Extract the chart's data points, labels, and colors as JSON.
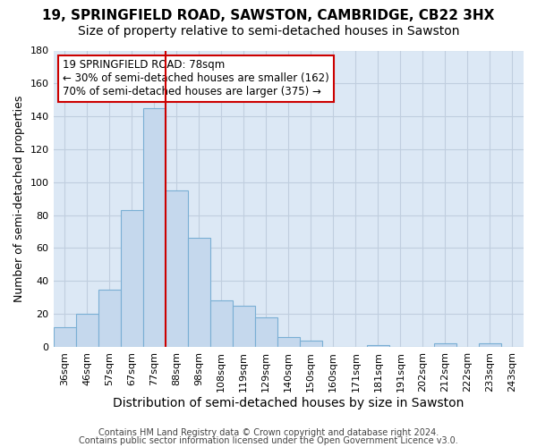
{
  "title": "19, SPRINGFIELD ROAD, SAWSTON, CAMBRIDGE, CB22 3HX",
  "subtitle": "Size of property relative to semi-detached houses in Sawston",
  "xlabel": "Distribution of semi-detached houses by size in Sawston",
  "ylabel": "Number of semi-detached properties",
  "bin_labels": [
    "36sqm",
    "46sqm",
    "57sqm",
    "67sqm",
    "77sqm",
    "88sqm",
    "98sqm",
    "108sqm",
    "119sqm",
    "129sqm",
    "140sqm",
    "150sqm",
    "160sqm",
    "171sqm",
    "181sqm",
    "191sqm",
    "202sqm",
    "212sqm",
    "222sqm",
    "233sqm",
    "243sqm"
  ],
  "bar_values": [
    12,
    20,
    35,
    83,
    145,
    95,
    66,
    28,
    25,
    18,
    6,
    4,
    0,
    0,
    1,
    0,
    0,
    2,
    0,
    2,
    0
  ],
  "bar_color": "#c5d8ed",
  "bar_edge_color": "#7aafd4",
  "vline_label_index": 4,
  "vline_color": "#cc0000",
  "ylim": [
    0,
    180
  ],
  "yticks": [
    0,
    20,
    40,
    60,
    80,
    100,
    120,
    140,
    160,
    180
  ],
  "annotation_title": "19 SPRINGFIELD ROAD: 78sqm",
  "annotation_line1": "← 30% of semi-detached houses are smaller (162)",
  "annotation_line2": "70% of semi-detached houses are larger (375) →",
  "annotation_box_color": "#ffffff",
  "annotation_box_edge_color": "#cc0000",
  "footer_line1": "Contains HM Land Registry data © Crown copyright and database right 2024.",
  "footer_line2": "Contains public sector information licensed under the Open Government Licence v3.0.",
  "background_color": "#ffffff",
  "axes_bg_color": "#dce8f5",
  "grid_color": "#c0cedf",
  "title_fontsize": 11,
  "subtitle_fontsize": 10,
  "xlabel_fontsize": 10,
  "ylabel_fontsize": 9,
  "tick_fontsize": 8,
  "footer_fontsize": 7
}
